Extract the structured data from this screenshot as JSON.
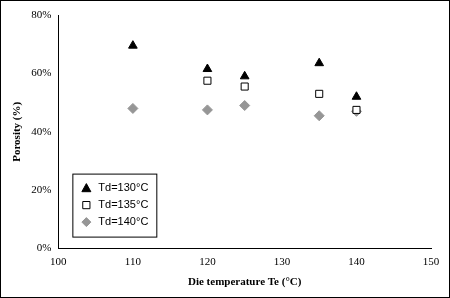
{
  "chart_data": {
    "type": "scatter",
    "x_label": "Die temperature Te (°C)",
    "y_label": "Porosity (%)",
    "xlim": [
      100,
      150
    ],
    "xticks": [
      100,
      110,
      120,
      130,
      140,
      150
    ],
    "ylim": [
      0,
      80
    ],
    "yticks": [
      {
        "value": 0,
        "label": "0%"
      },
      {
        "value": 20,
        "label": "20%"
      },
      {
        "value": 40,
        "label": "40%"
      },
      {
        "value": 60,
        "label": "60%"
      },
      {
        "value": 80,
        "label": "80%"
      }
    ],
    "grid": false,
    "legend": "lower left",
    "series": [
      {
        "name": "Td=130°C",
        "color": "#000000",
        "marker": "triangle",
        "x": [
          110,
          120,
          125,
          135,
          140
        ],
        "values": [
          69.5,
          61.5,
          59,
          63.5,
          52
        ]
      },
      {
        "name": "Td=135°C",
        "color": "#000000",
        "marker": "open-square",
        "x": [
          120,
          125,
          135,
          140
        ],
        "values": [
          57.5,
          55.5,
          53,
          47.5
        ]
      },
      {
        "name": "Td=140°C",
        "color": "#969696",
        "marker": "diamond",
        "x": [
          110,
          120,
          125,
          135,
          140
        ],
        "values": [
          48,
          47.5,
          49,
          45.5,
          47
        ]
      }
    ]
  }
}
